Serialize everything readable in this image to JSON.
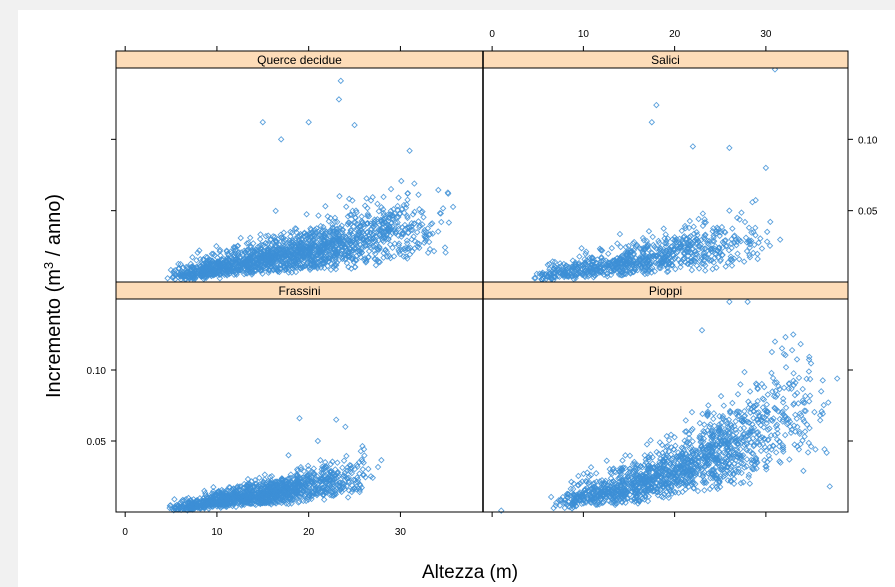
{
  "chart_data": {
    "type": "scatter",
    "xlabel": "Altezza (m)",
    "ylabel_main": "Incremento (m",
    "ylabel_sup": "3",
    "ylabel_tail": " / anno)",
    "xlim": [
      -1,
      39
    ],
    "ylim": [
      0,
      0.15
    ],
    "x_ticks": [
      0,
      10,
      20,
      30
    ],
    "y_ticks": [
      0.05,
      0.1
    ],
    "x_tick_labels": [
      "0",
      "10",
      "20",
      "30"
    ],
    "y_tick_labels": [
      "0.05",
      "0.10"
    ],
    "marker": "diamond-open",
    "point_color": "#3d8fd6",
    "strip_color": "#fddcb8",
    "panels": [
      {
        "name": "Querce decidue",
        "position": "top-left",
        "trend": [
          [
            2,
            0.0
          ],
          [
            6,
            0.003
          ],
          [
            10,
            0.008
          ],
          [
            15,
            0.016
          ],
          [
            20,
            0.022
          ],
          [
            25,
            0.03
          ],
          [
            30,
            0.04
          ],
          [
            35,
            0.045
          ]
        ],
        "x_range": [
          2,
          36
        ],
        "spread": 0.022,
        "count": 1700,
        "outliers": [
          [
            23.5,
            0.141
          ],
          [
            23.3,
            0.128
          ],
          [
            15,
            0.112
          ],
          [
            17,
            0.1
          ],
          [
            20,
            0.112
          ],
          [
            31,
            0.092
          ],
          [
            25,
            0.11
          ]
        ]
      },
      {
        "name": "Salici",
        "position": "top-right",
        "trend": [
          [
            2,
            0.0
          ],
          [
            6,
            0.002
          ],
          [
            10,
            0.006
          ],
          [
            15,
            0.012
          ],
          [
            20,
            0.02
          ],
          [
            25,
            0.025
          ],
          [
            28,
            0.03
          ]
        ],
        "x_range": [
          2,
          32
        ],
        "spread": 0.02,
        "count": 800,
        "outliers": [
          [
            31,
            0.149
          ],
          [
            18,
            0.124
          ],
          [
            17.5,
            0.112
          ],
          [
            22,
            0.095
          ],
          [
            26,
            0.094
          ],
          [
            30,
            0.08
          ]
        ]
      },
      {
        "name": "Frassini",
        "position": "bottom-left",
        "trend": [
          [
            3,
            0.0
          ],
          [
            8,
            0.004
          ],
          [
            12,
            0.01
          ],
          [
            16,
            0.015
          ],
          [
            20,
            0.02
          ],
          [
            24,
            0.027
          ],
          [
            27,
            0.03
          ]
        ],
        "x_range": [
          3,
          28
        ],
        "spread": 0.012,
        "count": 1300,
        "outliers": [
          [
            19,
            0.066
          ],
          [
            23,
            0.065
          ],
          [
            24,
            0.06
          ],
          [
            21,
            0.05
          ]
        ]
      },
      {
        "name": "Pioppi",
        "position": "bottom-right",
        "trend": [
          [
            4,
            0.0
          ],
          [
            10,
            0.008
          ],
          [
            15,
            0.016
          ],
          [
            20,
            0.03
          ],
          [
            25,
            0.05
          ],
          [
            30,
            0.07
          ],
          [
            33,
            0.085
          ]
        ],
        "x_range": [
          4,
          38
        ],
        "spread": 0.028,
        "count": 1500,
        "outliers": [
          [
            26,
            0.148
          ],
          [
            28,
            0.148
          ],
          [
            23,
            0.128
          ],
          [
            33,
            0.125
          ],
          [
            31,
            0.12
          ],
          [
            37,
            0.018
          ],
          [
            1,
            0.001
          ]
        ]
      }
    ]
  }
}
